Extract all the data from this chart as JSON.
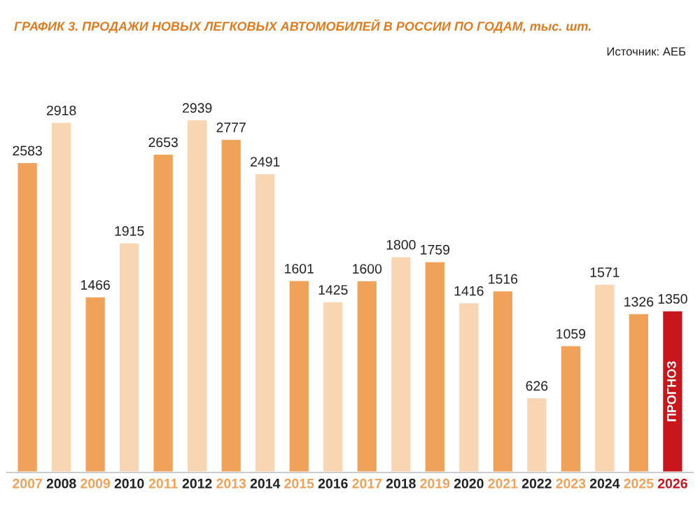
{
  "chart_data": {
    "type": "bar",
    "title": "ГРАФИК 3. ПРОДАЖИ НОВЫХ ЛЕГКОВЫХ АВТОМОБИЛЕЙ В РОССИИ ПО ГОДАМ, тыс. шт.",
    "categories": [
      "2007",
      "2008",
      "2009",
      "2010",
      "2011",
      "2012",
      "2013",
      "2014",
      "2015",
      "2016",
      "2017",
      "2018",
      "2019",
      "2020",
      "2021",
      "2022",
      "2023",
      "2024",
      "2025",
      "2026"
    ],
    "values": [
      2583,
      2918,
      1466,
      1915,
      2653,
      2939,
      2777,
      2491,
      1601,
      1425,
      1600,
      1800,
      1759,
      1416,
      1516,
      626,
      1059,
      1571,
      1326,
      1350
    ],
    "colors": [
      "#f0a25a",
      "#f8d5b3",
      "#f0a25a",
      "#f8d5b3",
      "#f0a25a",
      "#f8d5b3",
      "#f0a25a",
      "#f8d5b3",
      "#f0a25a",
      "#f8d5b3",
      "#f0a25a",
      "#f8d5b3",
      "#f0a25a",
      "#f8d5b3",
      "#f0a25a",
      "#f8d5b3",
      "#f0a25a",
      "#f8d5b3",
      "#f0a25a",
      "#c8161d"
    ],
    "data_labels": true,
    "annotations": [
      "Источник: АЕБ",
      "ПРОГНОЗ"
    ]
  }
}
